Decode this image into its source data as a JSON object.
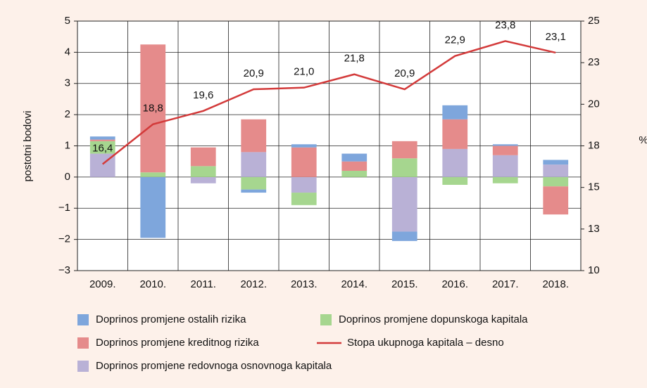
{
  "chart_data": {
    "type": "bar",
    "stacked": true,
    "ylabel": "postotni bodovi",
    "y2label": "%",
    "categories": [
      "2009.",
      "2010.",
      "2011.",
      "2012.",
      "2013.",
      "2014.",
      "2015.",
      "2016.",
      "2017.",
      "2018."
    ],
    "ylim": [
      -3,
      5
    ],
    "yticks": [
      {
        "value": -3,
        "label": "−3"
      },
      {
        "value": -2,
        "label": "−2"
      },
      {
        "value": -1,
        "label": "−1"
      },
      0,
      1,
      2,
      3,
      4,
      5
    ],
    "y2lim": [
      10,
      25
    ],
    "y2ticks": [
      10,
      {
        "value": 12.5,
        "label": "13"
      },
      15,
      {
        "value": 17.5,
        "label": "18"
      },
      20,
      {
        "value": 22.5,
        "label": "23"
      },
      25
    ],
    "grid": true,
    "series": [
      {
        "name": "Doprinos promjene redovnoga osnovnoga kapitala",
        "color": "#b9b1d6",
        "values": [
          0.75,
          0,
          -0.2,
          0.8,
          -0.5,
          0,
          -1.75,
          0.9,
          0.7,
          0.4
        ]
      },
      {
        "name": "Doprinos promjene dopunskoga kapitala",
        "color": "#a6d68f",
        "values": [
          0.4,
          0.15,
          0.35,
          -0.4,
          -0.4,
          0.2,
          0.6,
          -0.25,
          -0.2,
          -0.3
        ]
      },
      {
        "name": "Doprinos promjene kreditnog rizika",
        "color": "#e58b8b",
        "values": [
          0.05,
          4.1,
          0.6,
          1.05,
          0.95,
          0.3,
          0.55,
          0.95,
          0.3,
          -0.9
        ]
      },
      {
        "name": "Doprinos promjene ostalih rizika",
        "color": "#7ea6dc",
        "values": [
          0.1,
          -1.95,
          0,
          -0.1,
          0.1,
          0.25,
          -0.3,
          0.45,
          0.05,
          0.15
        ]
      },
      {
        "name": "Stopa ukupnoga kapitala – desno",
        "color": "#d33a3a",
        "type": "line",
        "axis": "y2",
        "values": [
          16.4,
          18.8,
          19.6,
          20.9,
          21.0,
          21.8,
          20.9,
          22.9,
          23.8,
          23.1
        ],
        "value_labels": [
          "16,4",
          "18,8",
          "19,6",
          "20,9",
          "21,0",
          "21,8",
          "20,9",
          "22,9",
          "23,8",
          "23,1"
        ]
      }
    ]
  }
}
